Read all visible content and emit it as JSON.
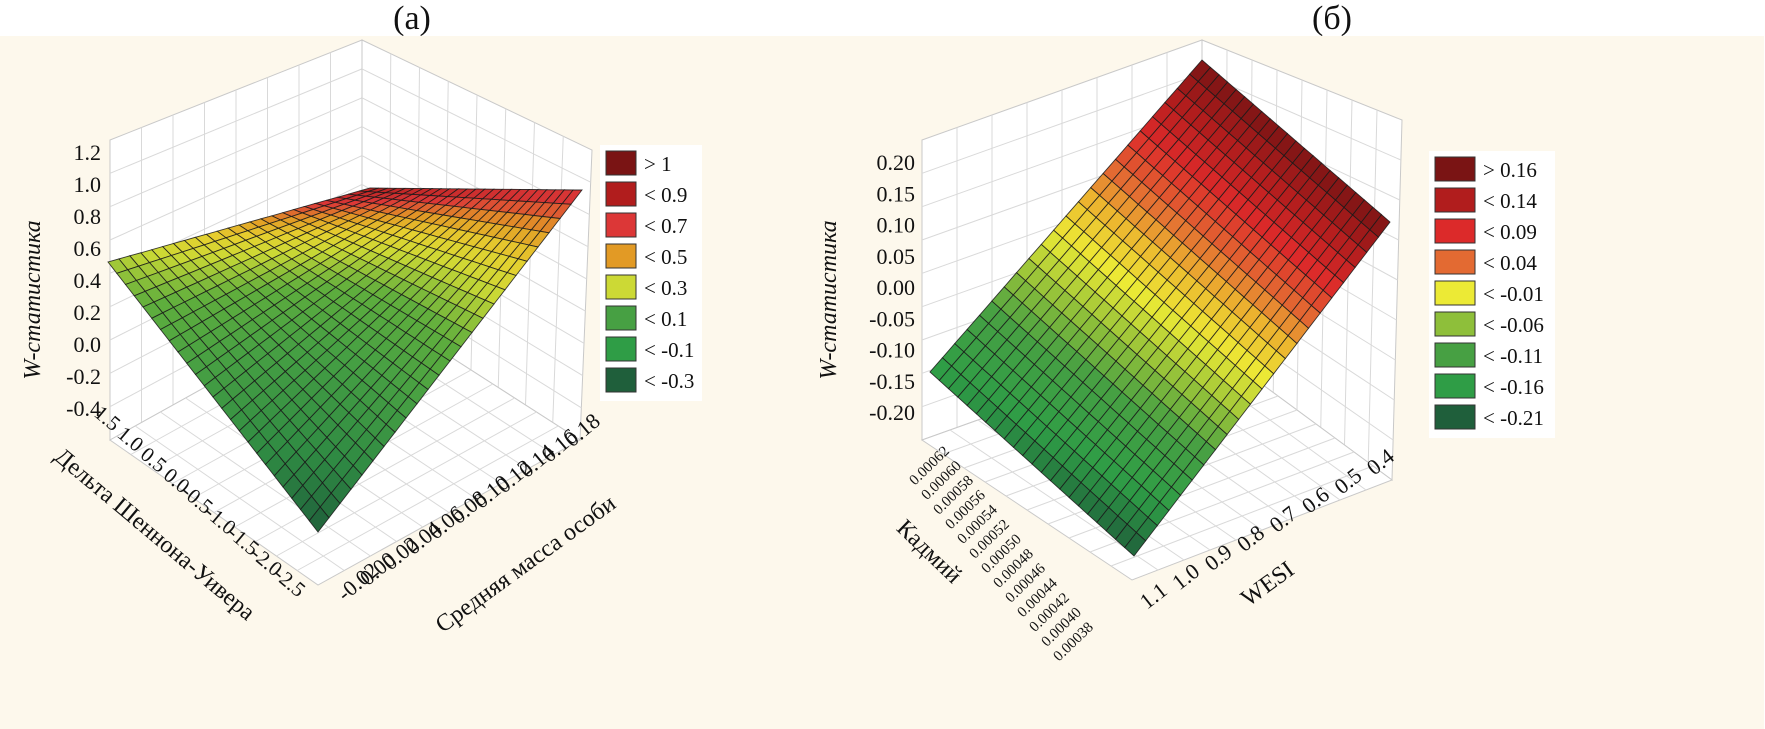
{
  "panels": {
    "a": {
      "label": "(а)"
    },
    "b": {
      "label": "(б)"
    }
  },
  "colors": {
    "background": "#fdf8ec",
    "grid": "#d9d9d9",
    "mesh": "#1a1a1a"
  },
  "chart_data": [
    {
      "type": "surface",
      "panel": "(а)",
      "title": "",
      "zlabel": "W-статистика",
      "xlabel": "Дельта Шеннона-Уивера",
      "ylabel": "Средняя масса особи",
      "z_ticks": [
        "1.2",
        "1.0",
        "0.8",
        "0.6",
        "0.4",
        "0.2",
        "0.0",
        "-0.2",
        "-0.4"
      ],
      "x_ticks": [
        "1.5",
        "1.0",
        "0.5",
        "0.0",
        "-0.5",
        "-1.0",
        "-1.5",
        "-2.0",
        "-2.5"
      ],
      "y_ticks": [
        "-0.02",
        "0.00",
        "0.02",
        "0.04",
        "0.06",
        "0.08",
        "0.10",
        "0.12",
        "0.14",
        "0.16",
        "0.18"
      ],
      "zlim": [
        -0.4,
        1.2
      ],
      "xlim": [
        -2.5,
        1.5
      ],
      "ylim": [
        -0.02,
        0.18
      ],
      "grid": true,
      "legend_position": "right",
      "legend": [
        {
          "label": "> 1",
          "color": "#7a1414"
        },
        {
          "label": "< 0.9",
          "color": "#b11d1d"
        },
        {
          "label": "< 0.7",
          "color": "#dc3737"
        },
        {
          "label": "< 0.5",
          "color": "#e29a25"
        },
        {
          "label": "< 0.3",
          "color": "#ccd935"
        },
        {
          "label": "< 0.1",
          "color": "#47a043"
        },
        {
          "label": "< -0.1",
          "color": "#2f9d46"
        },
        {
          "label": "< -0.3",
          "color": "#1f5f3b"
        }
      ],
      "corner_values": {
        "at_max_x_min_y": 0.45,
        "at_min_x_min_y": -0.4,
        "at_max_x_max_y": 0.95,
        "at_min_x_max_y": 1.05
      }
    },
    {
      "type": "surface",
      "panel": "(б)",
      "title": "",
      "zlabel": "W-статистика",
      "xlabel": "Кадмий",
      "ylabel": "WESI",
      "z_ticks": [
        "0.20",
        "0.15",
        "0.10",
        "0.05",
        "0.00",
        "-0.05",
        "-0.10",
        "-0.15",
        "-0.20"
      ],
      "x_ticks": [
        "0.00062",
        "0.00060",
        "0.00058",
        "0.00056",
        "0.00054",
        "0.00052",
        "0.00050",
        "0.00048",
        "0.00046",
        "0.00044",
        "0.00042",
        "0.00040",
        "0.00038"
      ],
      "y_ticks": [
        "1.1",
        "1.0",
        "0.9",
        "0.8",
        "0.7",
        "0.6",
        "0.5",
        "0.4"
      ],
      "zlim": [
        -0.2,
        0.2
      ],
      "xlim": [
        0.00038,
        0.00062
      ],
      "ylim": [
        0.4,
        1.1
      ],
      "grid": true,
      "legend_position": "right",
      "legend": [
        {
          "label": "> 0.16",
          "color": "#7a1414"
        },
        {
          "label": "< 0.14",
          "color": "#b11d1d"
        },
        {
          "label": "< 0.09",
          "color": "#dc2a2a"
        },
        {
          "label": "< 0.04",
          "color": "#e36a32"
        },
        {
          "label": "< -0.01",
          "color": "#ecea35"
        },
        {
          "label": "< -0.06",
          "color": "#8ebf3a"
        },
        {
          "label": "< -0.11",
          "color": "#47a043"
        },
        {
          "label": "< -0.16",
          "color": "#2f9d46"
        },
        {
          "label": "< -0.21",
          "color": "#1f5f3b"
        }
      ],
      "corner_values": {
        "at_max_x_max_y": -0.15,
        "at_min_x_max_y": -0.2,
        "at_max_x_min_y": 0.2,
        "at_min_x_min_y": 0.1
      }
    }
  ]
}
